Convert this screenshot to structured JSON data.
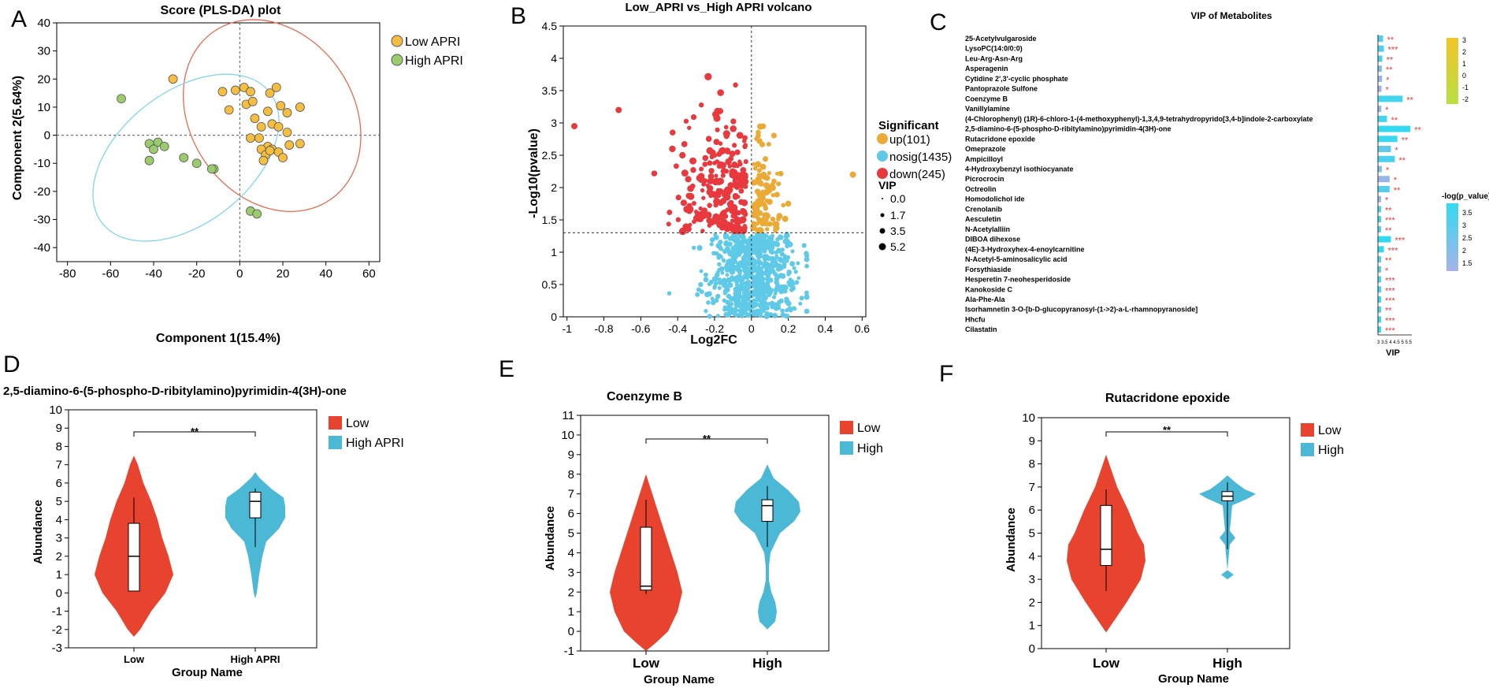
{
  "panel_letters": [
    "A",
    "B",
    "C",
    "D",
    "E",
    "F"
  ],
  "colors": {
    "low_yellow": "#F5BE41",
    "high_green": "#9ACB6C",
    "up": "#EBAA35",
    "nosig": "#5FC9E8",
    "down": "#E8393F",
    "violin_low": "#E8432E",
    "violin_high": "#4BB8D6",
    "vip_bar_hi": "#35D9EF",
    "vip_bar_lo": "#9FB2E6"
  },
  "chart_data": [
    {
      "id": "A",
      "type": "scatter",
      "title": "Score (PLS-DA) plot",
      "xlabel": "Component 1(15.4%)",
      "ylabel": "Component 2(5.64%)",
      "xlim": [
        -85,
        65
      ],
      "ylim": [
        -45,
        40
      ],
      "xticks": [
        -80,
        -60,
        -40,
        -20,
        0,
        20,
        40,
        60
      ],
      "yticks": [
        40,
        30,
        20,
        10,
        0,
        -10,
        -20,
        -30,
        -40
      ],
      "legend": [
        "Low APRI",
        "High APRI"
      ],
      "series": [
        {
          "name": "Low APRI",
          "points": [
            [
              -31,
              20
            ],
            [
              -8,
              15.5
            ],
            [
              -2,
              16
            ],
            [
              2,
              17
            ],
            [
              5,
              15.5
            ],
            [
              3,
              11
            ],
            [
              6,
              12
            ],
            [
              17,
              17
            ],
            [
              14,
              15
            ],
            [
              19,
              10.5
            ],
            [
              28,
              10
            ],
            [
              22,
              8
            ],
            [
              13,
              8.5
            ],
            [
              7,
              6
            ],
            [
              15,
              4
            ],
            [
              10,
              3
            ],
            [
              18,
              3
            ],
            [
              22,
              1
            ],
            [
              5,
              -1
            ],
            [
              9,
              -1
            ],
            [
              28,
              -3
            ],
            [
              23,
              -3.5
            ],
            [
              13,
              -4
            ],
            [
              10,
              -5
            ],
            [
              15,
              -5
            ],
            [
              18,
              -6
            ],
            [
              12,
              -7
            ],
            [
              20,
              -8
            ],
            [
              11,
              -9
            ],
            [
              -5,
              9
            ],
            [
              14,
              -5.5
            ]
          ]
        },
        {
          "name": "High APRI",
          "points": [
            [
              -55,
              13
            ],
            [
              -42,
              -3
            ],
            [
              -38,
              -2.5
            ],
            [
              -40,
              -5
            ],
            [
              -35,
              -4
            ],
            [
              -26,
              -8
            ],
            [
              -20,
              -10
            ],
            [
              -42,
              -9
            ],
            [
              -12,
              -12
            ],
            [
              -13,
              -12
            ],
            [
              5,
              -27
            ],
            [
              8,
              -28
            ]
          ]
        }
      ],
      "ellipses": [
        {
          "name": "Low APRI",
          "cx": 15,
          "cy": 7,
          "rx": 36,
          "ry": 28,
          "angle": -35
        },
        {
          "name": "High APRI",
          "cx": -25,
          "cy": -8,
          "rx": 47,
          "ry": 18,
          "angle": -38
        }
      ]
    },
    {
      "id": "B",
      "type": "scatter",
      "title": "Low_APRI vs_High APRI volcano",
      "xlabel": "Log2FC",
      "ylabel": "-Log10(pvalue)",
      "xlim": [
        -1.02,
        0.62
      ],
      "ylim": [
        0,
        4.5
      ],
      "xticks": [
        -1,
        -0.8,
        -0.6,
        -0.4,
        -0.2,
        0,
        0.2,
        0.4,
        0.6
      ],
      "yticks": [
        0,
        0.5,
        1,
        1.5,
        2,
        2.5,
        3,
        3.5,
        4,
        4.5
      ],
      "threshold_y": 1.3,
      "legend_title": "Significant",
      "legend": [
        {
          "label": "up(101)",
          "count": 101
        },
        {
          "label": "nosig(1435)",
          "count": 1435
        },
        {
          "label": "down(245)",
          "count": 245
        }
      ],
      "size_legend_title": "VIP",
      "size_legend": [
        "0.0",
        "1.7",
        "3.5",
        "5.2"
      ]
    },
    {
      "id": "C",
      "type": "bar",
      "title": "VIP of Metabolites",
      "xlabel": "VIP",
      "color_legend_title": "-log(p_value)",
      "color_ticks": [
        "3.5",
        "3",
        "2.5",
        "2",
        "1.5"
      ],
      "top_ticks": [
        "3",
        "2",
        "1",
        "0",
        "-1",
        "-2"
      ],
      "x_tick_text": "3 3.5 4 4.5 5 5.5",
      "categories": [
        "25-Acetylvulgaroside",
        "LysoPC(14:0/0:0)",
        "Leu-Arg-Asn-Arg",
        "Asperagenin",
        "Cytidine 2',3'-cyclic phosphate",
        "Pantoprazole Sulfone",
        "Coenzyme B",
        "Vanillylamine",
        "(4-Chlorophenyl) (1R)-6-chloro-1-(4-methoxyphenyl)-1,3,4,9-tetrahydropyrido[3,4-b]indole-2-carboxylate",
        "2,5-diamino-6-(5-phospho-D-ribitylamino)pyrimidin-4(3H)-one",
        "Rutacridone epoxide",
        "Omeprazole",
        "Ampicilloyl",
        "4-Hydroxybenzyl isothiocyanate",
        "Picrocrocin",
        "Octreolin",
        "Homodolichol ide",
        "Crenolanib",
        "Aesculetin",
        "N-Acetylalliin",
        "DIBOA dihexose",
        "(4E)-3-Hydroxyhex-4-enoylcarnitine",
        "N-Acetyl-5-aminosalicylic acid",
        "Forsythiaside",
        "Hesperetin 7-neohesperidoside",
        "Kanokoside C",
        "Ala-Phe-Ala",
        "Isorhamnetin 3-O-[b-D-glucopyranosyl-(1->2)-a-L-rhamnopyranoside]",
        "Hhcfu",
        "Cilastatin"
      ],
      "values": [
        3.25,
        3.28,
        3.22,
        3.2,
        3.21,
        3.19,
        4.0,
        3.18,
        3.4,
        4.3,
        3.8,
        3.55,
        3.7,
        3.2,
        3.5,
        3.5,
        3.1,
        3.12,
        3.12,
        3.12,
        3.55,
        3.28,
        3.12,
        3.12,
        3.12,
        3.15,
        3.1,
        3.1,
        3.1,
        3.1
      ],
      "sig": [
        "**",
        "***",
        "**",
        "**",
        "*",
        "*",
        "**",
        "*",
        "**",
        "**",
        "**",
        "*",
        "**",
        "*",
        "*",
        "**",
        "*",
        "**",
        "***",
        "**",
        "***",
        "***",
        "**",
        "*",
        "***",
        "***",
        "***",
        "**",
        "***",
        "***"
      ],
      "pcolor": [
        3.0,
        3.2,
        3.2,
        2.2,
        1.6,
        1.5,
        3.4,
        1.8,
        3.4,
        3.7,
        3.6,
        2.8,
        3.2,
        2.0,
        1.7,
        3.0,
        1.9,
        3.2,
        3.6,
        3.2,
        3.7,
        3.7,
        3.1,
        2.8,
        3.4,
        3.5,
        3.6,
        3.2,
        3.6,
        3.6
      ]
    },
    {
      "id": "D",
      "type": "violin",
      "title": "2,5-diamino-6-(5-phospho-D-ribitylamino)pyrimidin-4(3H)-one",
      "xlabel": "Group Name",
      "ylabel": "Abundance",
      "categories": [
        "Low",
        "High APRI"
      ],
      "legend": [
        "Low",
        "High APRI"
      ],
      "ylim": [
        -3,
        10
      ],
      "yticks": [
        -3,
        -2,
        -1,
        0,
        1,
        2,
        3,
        4,
        5,
        6,
        7,
        8,
        9,
        10
      ],
      "significance": "**",
      "box": [
        {
          "min": 0.1,
          "q1": 0.1,
          "median": 2.0,
          "q3": 3.8,
          "max": 5.2
        },
        {
          "min": 2.5,
          "q1": 4.1,
          "median": 5.0,
          "q3": 5.5,
          "max": 5.7
        }
      ]
    },
    {
      "id": "E",
      "type": "violin",
      "title": "Coenzyme B",
      "xlabel": "Group Name",
      "ylabel": "Abundance",
      "categories": [
        "Low",
        "High"
      ],
      "legend": [
        "Low",
        "High"
      ],
      "ylim": [
        -1,
        11
      ],
      "yticks": [
        -1,
        0,
        1,
        2,
        3,
        4,
        5,
        6,
        7,
        8,
        9,
        10,
        11
      ],
      "significance": "**",
      "box": [
        {
          "min": 1.9,
          "q1": 2.1,
          "median": 2.3,
          "q3": 5.3,
          "max": 6.7
        },
        {
          "min": 4.3,
          "q1": 5.6,
          "median": 6.4,
          "q3": 6.7,
          "max": 7.4
        }
      ]
    },
    {
      "id": "F",
      "type": "violin",
      "title": "Rutacridone epoxide",
      "xlabel": "Group Name",
      "ylabel": "Abundance",
      "categories": [
        "Low",
        "High"
      ],
      "legend": [
        "Low",
        "High"
      ],
      "ylim": [
        0,
        10
      ],
      "yticks": [
        0,
        1,
        2,
        3,
        4,
        5,
        6,
        7,
        8,
        9,
        10
      ],
      "significance": "**",
      "box": [
        {
          "min": 2.5,
          "q1": 3.6,
          "median": 4.3,
          "q3": 6.2,
          "max": 6.9
        },
        {
          "min": 4.3,
          "q1": 6.4,
          "median": 6.6,
          "q3": 6.8,
          "max": 7.2
        }
      ]
    }
  ]
}
